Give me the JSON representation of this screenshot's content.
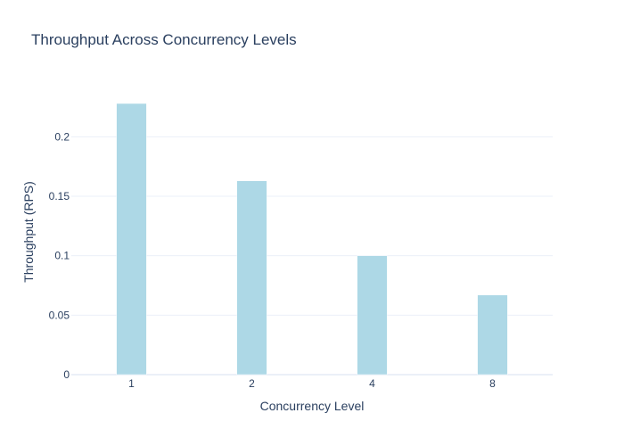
{
  "chart_data": {
    "type": "bar",
    "title": "Throughput Across Concurrency Levels",
    "xlabel": "Concurrency Level",
    "ylabel": "Throughput (RPS)",
    "categories": [
      "1",
      "2",
      "4",
      "8"
    ],
    "values": [
      0.228,
      0.163,
      0.1,
      0.067
    ],
    "ylim": [
      0,
      0.24
    ],
    "yticks": [
      0,
      0.05,
      0.1,
      0.15,
      0.2
    ],
    "ytick_labels": [
      "0",
      "0.05",
      "0.1",
      "0.15",
      "0.2"
    ],
    "grid": true,
    "legend": "none",
    "bar_color": "#add8e6"
  }
}
